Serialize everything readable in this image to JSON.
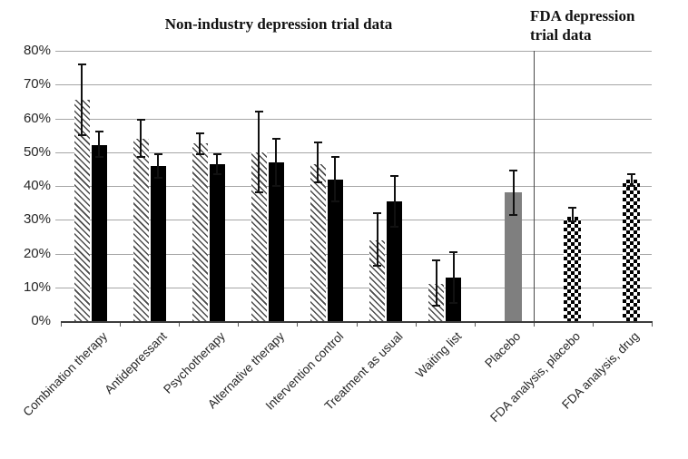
{
  "chart_data": {
    "type": "bar",
    "title_left": "Non-industry depression trial data",
    "title_right": "FDA depression\ntrial data",
    "ylim": [
      0,
      80
    ],
    "ytick_step": 10,
    "ytick_labels": [
      "0%",
      "10%",
      "20%",
      "30%",
      "40%",
      "50%",
      "60%",
      "70%",
      "80%"
    ],
    "grid": true,
    "legend": "none",
    "categories": [
      "Combination therapy",
      "Antidepressant",
      "Psychotherapy",
      "Alternative therapy",
      "Intervention control",
      "Treatment as usual",
      "Waiting list",
      "Placebo",
      "FDA analysis, placebo",
      "FDA analysis, drug"
    ],
    "section_divider_after_category": "Placebo",
    "groups": [
      {
        "category": "Combination therapy",
        "bars": [
          {
            "pattern": "diagonal-hatch",
            "value": 65.5,
            "err_low": 55,
            "err_high": 76
          },
          {
            "pattern": "solid-black",
            "value": 52,
            "err_low": 48.5,
            "err_high": 56
          }
        ]
      },
      {
        "category": "Antidepressant",
        "bars": [
          {
            "pattern": "diagonal-hatch",
            "value": 54,
            "err_low": 48.5,
            "err_high": 59.5
          },
          {
            "pattern": "solid-black",
            "value": 46,
            "err_low": 42.5,
            "err_high": 49.5
          }
        ]
      },
      {
        "category": "Psychotherapy",
        "bars": [
          {
            "pattern": "diagonal-hatch",
            "value": 52.5,
            "err_low": 49.5,
            "err_high": 55.5
          },
          {
            "pattern": "solid-black",
            "value": 46.5,
            "err_low": 43.5,
            "err_high": 49.5
          }
        ]
      },
      {
        "category": "Alternative therapy",
        "bars": [
          {
            "pattern": "diagonal-hatch",
            "value": 50,
            "err_low": 38,
            "err_high": 62
          },
          {
            "pattern": "solid-black",
            "value": 47,
            "err_low": 40,
            "err_high": 54
          }
        ]
      },
      {
        "category": "Intervention control",
        "bars": [
          {
            "pattern": "diagonal-hatch",
            "value": 46.5,
            "err_low": 41,
            "err_high": 53
          },
          {
            "pattern": "solid-black",
            "value": 42,
            "err_low": 35.5,
            "err_high": 48.5
          }
        ]
      },
      {
        "category": "Treatment as usual",
        "bars": [
          {
            "pattern": "diagonal-hatch",
            "value": 24,
            "err_low": 16.5,
            "err_high": 32
          },
          {
            "pattern": "solid-black",
            "value": 35.5,
            "err_low": 28,
            "err_high": 43
          }
        ]
      },
      {
        "category": "Waiting list",
        "bars": [
          {
            "pattern": "diagonal-hatch",
            "value": 11,
            "err_low": 4.5,
            "err_high": 18
          },
          {
            "pattern": "solid-black",
            "value": 13,
            "err_low": 5.5,
            "err_high": 20.5
          }
        ]
      },
      {
        "category": "Placebo",
        "bars": [
          {
            "pattern": "solid-gray",
            "value": 38,
            "err_low": 31.5,
            "err_high": 44.5
          }
        ]
      },
      {
        "category": "FDA analysis, placebo",
        "bars": [
          {
            "pattern": "checkerboard",
            "value": 31,
            "err_low": 29.5,
            "err_high": 33.5
          }
        ]
      },
      {
        "category": "FDA analysis, drug",
        "bars": [
          {
            "pattern": "checkerboard",
            "value": 42,
            "err_low": 40,
            "err_high": 43.5
          }
        ]
      }
    ],
    "colors": {
      "bar_black": "#000000",
      "bar_gray": "#7f7f7f",
      "hatch_stroke": "#4a4a4a",
      "gridline": "#a6a6a6",
      "axis": "#3d3d3d",
      "text": "#262626",
      "background": "#ffffff"
    }
  }
}
